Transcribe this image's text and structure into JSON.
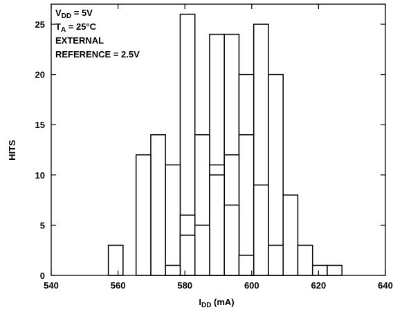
{
  "chart_data": {
    "type": "bar",
    "ylabel": "HITS",
    "xlabel": {
      "main": "I",
      "sub": "DD",
      "rest": " (mA)"
    },
    "xlim": [
      540,
      640
    ],
    "ylim": [
      0,
      27
    ],
    "x_ticks": [
      540,
      560,
      580,
      600,
      620,
      640
    ],
    "y_ticks": [
      0,
      5,
      10,
      15,
      20,
      25
    ],
    "grid": false,
    "bin_width": 4.4,
    "bars": [
      {
        "x": 559.3,
        "value": 3
      },
      {
        "x": 567.6,
        "value": 12
      },
      {
        "x": 572.0,
        "value": 14
      },
      {
        "x": 576.4,
        "value": 11
      },
      {
        "x": 576.4,
        "value": 1
      },
      {
        "x": 580.8,
        "value": 26
      },
      {
        "x": 580.8,
        "value": 6
      },
      {
        "x": 580.8,
        "value": 4
      },
      {
        "x": 585.2,
        "value": 14
      },
      {
        "x": 585.2,
        "value": 5
      },
      {
        "x": 589.6,
        "value": 24
      },
      {
        "x": 589.6,
        "value": 11
      },
      {
        "x": 589.6,
        "value": 10
      },
      {
        "x": 594.0,
        "value": 24
      },
      {
        "x": 594.0,
        "value": 12
      },
      {
        "x": 594.0,
        "value": 7
      },
      {
        "x": 598.4,
        "value": 20
      },
      {
        "x": 598.4,
        "value": 14
      },
      {
        "x": 598.4,
        "value": 2
      },
      {
        "x": 602.8,
        "value": 25
      },
      {
        "x": 602.8,
        "value": 9
      },
      {
        "x": 607.2,
        "value": 20
      },
      {
        "x": 607.2,
        "value": 3
      },
      {
        "x": 611.6,
        "value": 8
      },
      {
        "x": 616.0,
        "value": 3
      },
      {
        "x": 620.4,
        "value": 1
      },
      {
        "x": 624.8,
        "value": 1
      }
    ],
    "annotation": {
      "l1": {
        "main": "V",
        "sub": "DD",
        "rest": " = 5V"
      },
      "l2": {
        "main": "T",
        "sub": "A",
        "rest": " = 25°C"
      },
      "l3": "EXTERNAL",
      "l4": "REFERENCE = 2.5V"
    }
  }
}
